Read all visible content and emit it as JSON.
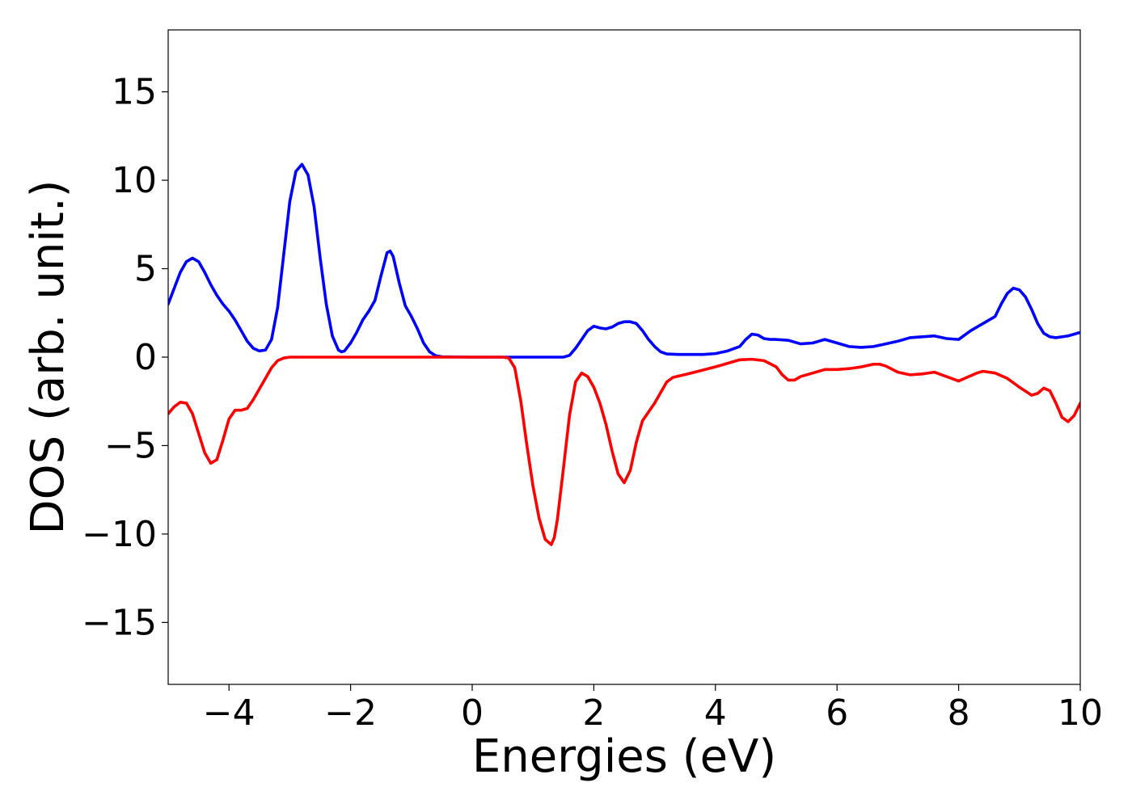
{
  "chart_data": {
    "type": "line",
    "title": "",
    "xlabel": "Energies (eV)",
    "ylabel": "DOS (arb. unit.)",
    "xlim": [
      -5,
      10
    ],
    "ylim": [
      -18.5,
      18.5
    ],
    "xticks": [
      -4,
      -2,
      0,
      2,
      4,
      6,
      8,
      10
    ],
    "xtick_labels": [
      "−4",
      "−2",
      "0",
      "2",
      "4",
      "6",
      "8",
      "10"
    ],
    "yticks": [
      -15,
      -10,
      -5,
      0,
      5,
      10,
      15
    ],
    "ytick_labels": [
      "−15",
      "−10",
      "−5",
      "0",
      "5",
      "10",
      "15"
    ],
    "grid": false,
    "series": [
      {
        "color": "#0000ff",
        "points": [
          [
            -5.0,
            3.0
          ],
          [
            -4.9,
            3.9
          ],
          [
            -4.8,
            4.8
          ],
          [
            -4.7,
            5.4
          ],
          [
            -4.6,
            5.6
          ],
          [
            -4.5,
            5.4
          ],
          [
            -4.4,
            4.8
          ],
          [
            -4.3,
            4.1
          ],
          [
            -4.2,
            3.5
          ],
          [
            -4.1,
            3.0
          ],
          [
            -4.0,
            2.6
          ],
          [
            -3.9,
            2.1
          ],
          [
            -3.8,
            1.5
          ],
          [
            -3.7,
            0.9
          ],
          [
            -3.6,
            0.5
          ],
          [
            -3.5,
            0.35
          ],
          [
            -3.4,
            0.4
          ],
          [
            -3.3,
            1.0
          ],
          [
            -3.2,
            2.8
          ],
          [
            -3.1,
            5.8
          ],
          [
            -3.0,
            8.8
          ],
          [
            -2.9,
            10.5
          ],
          [
            -2.8,
            10.9
          ],
          [
            -2.7,
            10.3
          ],
          [
            -2.6,
            8.5
          ],
          [
            -2.5,
            5.6
          ],
          [
            -2.4,
            3.0
          ],
          [
            -2.3,
            1.2
          ],
          [
            -2.2,
            0.4
          ],
          [
            -2.15,
            0.3
          ],
          [
            -2.1,
            0.35
          ],
          [
            -2.0,
            0.8
          ],
          [
            -1.9,
            1.4
          ],
          [
            -1.8,
            2.1
          ],
          [
            -1.7,
            2.6
          ],
          [
            -1.6,
            3.2
          ],
          [
            -1.5,
            4.6
          ],
          [
            -1.4,
            5.9
          ],
          [
            -1.35,
            6.0
          ],
          [
            -1.3,
            5.7
          ],
          [
            -1.2,
            4.2
          ],
          [
            -1.1,
            2.9
          ],
          [
            -1.0,
            2.3
          ],
          [
            -0.9,
            1.6
          ],
          [
            -0.8,
            0.8
          ],
          [
            -0.7,
            0.3
          ],
          [
            -0.6,
            0.08
          ],
          [
            -0.5,
            0.02
          ],
          [
            0.0,
            0.0
          ],
          [
            1.5,
            0.0
          ],
          [
            1.6,
            0.1
          ],
          [
            1.7,
            0.5
          ],
          [
            1.8,
            1.0
          ],
          [
            1.9,
            1.5
          ],
          [
            2.0,
            1.75
          ],
          [
            2.1,
            1.65
          ],
          [
            2.2,
            1.6
          ],
          [
            2.3,
            1.7
          ],
          [
            2.4,
            1.9
          ],
          [
            2.5,
            2.0
          ],
          [
            2.6,
            2.0
          ],
          [
            2.7,
            1.9
          ],
          [
            2.8,
            1.5
          ],
          [
            2.9,
            1.0
          ],
          [
            3.0,
            0.6
          ],
          [
            3.1,
            0.3
          ],
          [
            3.2,
            0.18
          ],
          [
            3.4,
            0.15
          ],
          [
            3.8,
            0.15
          ],
          [
            4.0,
            0.2
          ],
          [
            4.2,
            0.35
          ],
          [
            4.4,
            0.6
          ],
          [
            4.5,
            1.0
          ],
          [
            4.6,
            1.3
          ],
          [
            4.7,
            1.25
          ],
          [
            4.8,
            1.05
          ],
          [
            4.9,
            1.0
          ],
          [
            5.0,
            1.0
          ],
          [
            5.2,
            0.95
          ],
          [
            5.4,
            0.75
          ],
          [
            5.6,
            0.8
          ],
          [
            5.8,
            1.0
          ],
          [
            6.0,
            0.8
          ],
          [
            6.2,
            0.6
          ],
          [
            6.4,
            0.55
          ],
          [
            6.6,
            0.6
          ],
          [
            6.8,
            0.75
          ],
          [
            7.0,
            0.9
          ],
          [
            7.2,
            1.1
          ],
          [
            7.4,
            1.15
          ],
          [
            7.6,
            1.2
          ],
          [
            7.8,
            1.05
          ],
          [
            8.0,
            1.0
          ],
          [
            8.2,
            1.5
          ],
          [
            8.4,
            1.9
          ],
          [
            8.6,
            2.3
          ],
          [
            8.7,
            3.0
          ],
          [
            8.8,
            3.6
          ],
          [
            8.9,
            3.9
          ],
          [
            9.0,
            3.8
          ],
          [
            9.1,
            3.4
          ],
          [
            9.2,
            2.7
          ],
          [
            9.3,
            1.9
          ],
          [
            9.4,
            1.35
          ],
          [
            9.5,
            1.15
          ],
          [
            9.6,
            1.1
          ],
          [
            9.8,
            1.2
          ],
          [
            10.0,
            1.4
          ]
        ]
      },
      {
        "color": "#ff0000",
        "points": [
          [
            -5.0,
            -3.2
          ],
          [
            -4.9,
            -2.8
          ],
          [
            -4.8,
            -2.55
          ],
          [
            -4.7,
            -2.6
          ],
          [
            -4.6,
            -3.2
          ],
          [
            -4.5,
            -4.3
          ],
          [
            -4.4,
            -5.4
          ],
          [
            -4.3,
            -6.0
          ],
          [
            -4.2,
            -5.8
          ],
          [
            -4.1,
            -4.7
          ],
          [
            -4.0,
            -3.5
          ],
          [
            -3.9,
            -3.0
          ],
          [
            -3.8,
            -3.0
          ],
          [
            -3.7,
            -2.9
          ],
          [
            -3.6,
            -2.4
          ],
          [
            -3.5,
            -1.8
          ],
          [
            -3.4,
            -1.2
          ],
          [
            -3.3,
            -0.6
          ],
          [
            -3.2,
            -0.2
          ],
          [
            -3.1,
            -0.05
          ],
          [
            -3.0,
            0.0
          ],
          [
            0.5,
            0.0
          ],
          [
            0.6,
            -0.05
          ],
          [
            0.7,
            -0.6
          ],
          [
            0.8,
            -2.5
          ],
          [
            0.9,
            -5.0
          ],
          [
            1.0,
            -7.3
          ],
          [
            1.1,
            -9.1
          ],
          [
            1.2,
            -10.3
          ],
          [
            1.3,
            -10.6
          ],
          [
            1.35,
            -10.2
          ],
          [
            1.4,
            -9.2
          ],
          [
            1.5,
            -6.3
          ],
          [
            1.6,
            -3.3
          ],
          [
            1.7,
            -1.4
          ],
          [
            1.8,
            -0.9
          ],
          [
            1.9,
            -1.1
          ],
          [
            2.0,
            -1.7
          ],
          [
            2.1,
            -2.6
          ],
          [
            2.2,
            -3.8
          ],
          [
            2.3,
            -5.3
          ],
          [
            2.4,
            -6.6
          ],
          [
            2.5,
            -7.1
          ],
          [
            2.6,
            -6.4
          ],
          [
            2.7,
            -4.8
          ],
          [
            2.8,
            -3.6
          ],
          [
            2.9,
            -3.1
          ],
          [
            3.0,
            -2.6
          ],
          [
            3.1,
            -2.0
          ],
          [
            3.2,
            -1.4
          ],
          [
            3.3,
            -1.15
          ],
          [
            3.6,
            -0.9
          ],
          [
            4.0,
            -0.55
          ],
          [
            4.2,
            -0.35
          ],
          [
            4.4,
            -0.15
          ],
          [
            4.6,
            -0.12
          ],
          [
            4.8,
            -0.2
          ],
          [
            5.0,
            -0.55
          ],
          [
            5.1,
            -1.0
          ],
          [
            5.2,
            -1.3
          ],
          [
            5.3,
            -1.3
          ],
          [
            5.4,
            -1.1
          ],
          [
            5.6,
            -0.9
          ],
          [
            5.8,
            -0.7
          ],
          [
            6.0,
            -0.7
          ],
          [
            6.2,
            -0.65
          ],
          [
            6.4,
            -0.55
          ],
          [
            6.6,
            -0.4
          ],
          [
            6.7,
            -0.4
          ],
          [
            6.8,
            -0.5
          ],
          [
            7.0,
            -0.85
          ],
          [
            7.2,
            -1.0
          ],
          [
            7.4,
            -0.95
          ],
          [
            7.6,
            -0.85
          ],
          [
            7.8,
            -1.1
          ],
          [
            8.0,
            -1.35
          ],
          [
            8.1,
            -1.2
          ],
          [
            8.3,
            -0.9
          ],
          [
            8.4,
            -0.8
          ],
          [
            8.6,
            -0.9
          ],
          [
            8.8,
            -1.2
          ],
          [
            9.0,
            -1.7
          ],
          [
            9.2,
            -2.15
          ],
          [
            9.3,
            -2.05
          ],
          [
            9.4,
            -1.75
          ],
          [
            9.5,
            -1.9
          ],
          [
            9.6,
            -2.6
          ],
          [
            9.7,
            -3.4
          ],
          [
            9.8,
            -3.65
          ],
          [
            9.9,
            -3.3
          ],
          [
            10.0,
            -2.6
          ]
        ]
      }
    ]
  }
}
